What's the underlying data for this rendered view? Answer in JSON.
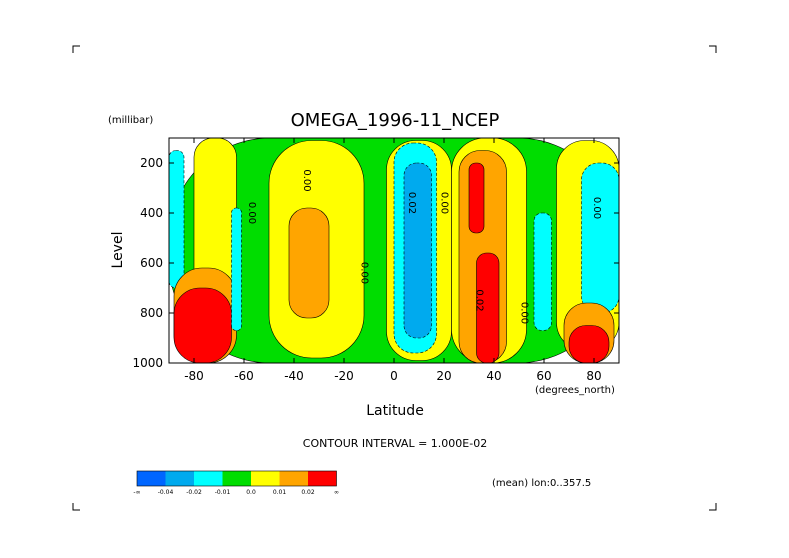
{
  "chart_data": {
    "type": "heatmap",
    "title": "OMEGA_1996-11_NCEP",
    "xlabel": "Latitude",
    "ylabel": "Level",
    "x_unit": "(degrees_north)",
    "y_unit": "(millibar)",
    "xlim": [
      -90,
      90
    ],
    "ylim": [
      1000,
      100
    ],
    "x_ticks": [
      -80,
      -60,
      -40,
      -20,
      0,
      20,
      40,
      60,
      80
    ],
    "x_tick_labels": [
      "-80",
      "-60",
      "-40",
      "-20",
      "0",
      "20",
      "40",
      "60",
      "80"
    ],
    "y_ticks": [
      200,
      400,
      600,
      800,
      1000
    ],
    "y_tick_labels": [
      "200",
      "400",
      "600",
      "800",
      "1000"
    ],
    "contour_interval_text": "CONTOUR INTERVAL = 1.000E-02",
    "averaging_note": "(mean) lon:0..357.5",
    "colorbar": {
      "colors": [
        "#0066ff",
        "#00aaee",
        "#00ffff",
        "#00dd00",
        "#ffff00",
        "#ffa500",
        "#ff0000"
      ],
      "labels": [
        "-∞",
        "-0.04",
        "-0.02",
        "-0.01",
        "0.0",
        "0.01",
        "0.02",
        "∞"
      ]
    },
    "contour_labels": [
      {
        "text": "0.00",
        "lat": -58,
        "level": 400
      },
      {
        "text": "0.00",
        "lat": -36,
        "level": 270
      },
      {
        "text": "0.00",
        "lat": -13,
        "level": 640
      },
      {
        "text": "0.02",
        "lat": 6,
        "level": 360
      },
      {
        "text": "0.00",
        "lat": 19,
        "level": 360
      },
      {
        "text": "0.02",
        "lat": 33,
        "level": 750
      },
      {
        "text": "0.00",
        "lat": 51,
        "level": 800
      },
      {
        "text": "0.00",
        "lat": 80,
        "level": 380
      }
    ],
    "regions": [
      {
        "value": 0.0,
        "color_index": 3,
        "lat": [
          -90,
          90
        ],
        "level": [
          100,
          1000
        ]
      },
      {
        "value": 0.005,
        "color_index": 4,
        "lat": [
          -80,
          -63
        ],
        "level": [
          100,
          900
        ]
      },
      {
        "value": -0.015,
        "color_index": 2,
        "lat": [
          -90,
          -84
        ],
        "level": [
          150,
          700
        ]
      },
      {
        "value": 0.015,
        "color_index": 5,
        "lat": [
          -88,
          -63
        ],
        "level": [
          620,
          1000
        ]
      },
      {
        "value": 0.03,
        "color_index": 6,
        "lat": [
          -88,
          -65
        ],
        "level": [
          700,
          1000
        ]
      },
      {
        "value": -0.015,
        "color_index": 2,
        "lat": [
          -65,
          -61
        ],
        "level": [
          380,
          870
        ]
      },
      {
        "value": 0.005,
        "color_index": 4,
        "lat": [
          -50,
          -12
        ],
        "level": [
          110,
          980
        ]
      },
      {
        "value": 0.015,
        "color_index": 5,
        "lat": [
          -42,
          -26
        ],
        "level": [
          380,
          820
        ]
      },
      {
        "value": 0.005,
        "color_index": 4,
        "lat": [
          -3,
          23
        ],
        "level": [
          110,
          990
        ]
      },
      {
        "value": -0.015,
        "color_index": 2,
        "lat": [
          0,
          17
        ],
        "level": [
          120,
          960
        ]
      },
      {
        "value": -0.03,
        "color_index": 1,
        "lat": [
          4,
          15
        ],
        "level": [
          200,
          900
        ]
      },
      {
        "value": 0.005,
        "color_index": 4,
        "lat": [
          23,
          53
        ],
        "level": [
          100,
          1000
        ]
      },
      {
        "value": 0.015,
        "color_index": 5,
        "lat": [
          26,
          45
        ],
        "level": [
          150,
          1000
        ]
      },
      {
        "value": 0.03,
        "color_index": 6,
        "lat": [
          30,
          36
        ],
        "level": [
          200,
          480
        ]
      },
      {
        "value": 0.03,
        "color_index": 6,
        "lat": [
          33,
          42
        ],
        "level": [
          560,
          1000
        ]
      },
      {
        "value": 0.005,
        "color_index": 4,
        "lat": [
          65,
          90
        ],
        "level": [
          110,
          950
        ]
      },
      {
        "value": -0.015,
        "color_index": 2,
        "lat": [
          75,
          90
        ],
        "level": [
          200,
          800
        ]
      },
      {
        "value": -0.015,
        "color_index": 2,
        "lat": [
          56,
          63
        ],
        "level": [
          400,
          870
        ]
      },
      {
        "value": 0.015,
        "color_index": 5,
        "lat": [
          68,
          88
        ],
        "level": [
          760,
          1000
        ]
      },
      {
        "value": 0.03,
        "color_index": 6,
        "lat": [
          70,
          86
        ],
        "level": [
          850,
          1000
        ]
      }
    ]
  }
}
